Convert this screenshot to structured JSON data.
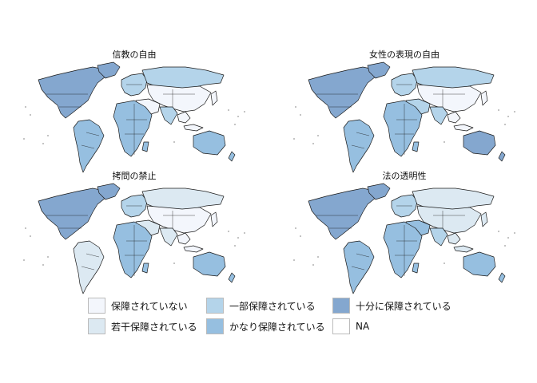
{
  "colors": {
    "none": "#f3f6fc",
    "slight": "#dce9f2",
    "partial": "#b4d4ea",
    "considerable": "#96bfe0",
    "full": "#84a7cf",
    "na": "#ffffff",
    "border": "#1a1a1a"
  },
  "panels": [
    {
      "title": "信教の自由",
      "colors": {
        "NA": "full",
        "SA": "considerable",
        "EU": "partial",
        "RU": "partial",
        "AS": "none",
        "ME": "none",
        "AF": "considerable",
        "IN": "partial",
        "AU": "considerable"
      }
    },
    {
      "title": "女性の表現の自由",
      "colors": {
        "NA": "full",
        "SA": "considerable",
        "EU": "partial",
        "RU": "partial",
        "AS": "none",
        "ME": "partial",
        "AF": "considerable",
        "IN": "partial",
        "AU": "full"
      }
    },
    {
      "title": "拷問の禁止",
      "colors": {
        "NA": "full",
        "SA": "slight",
        "EU": "partial",
        "RU": "slight",
        "AS": "none",
        "ME": "slight",
        "AF": "considerable",
        "IN": "slight",
        "AU": "considerable"
      }
    },
    {
      "title": "法の透明性",
      "colors": {
        "NA": "full",
        "SA": "considerable",
        "EU": "partial",
        "RU": "slight",
        "AS": "slight",
        "ME": "considerable",
        "AF": "considerable",
        "IN": "partial",
        "AU": "considerable"
      }
    }
  ],
  "legend": [
    {
      "label": "保障されていない",
      "level": "none"
    },
    {
      "label": "若干保障されている",
      "level": "slight"
    },
    {
      "label": "一部保障されている",
      "level": "partial"
    },
    {
      "label": "かなり保障されている",
      "level": "considerable"
    },
    {
      "label": "十分に保障されている",
      "level": "full"
    },
    {
      "label": "NA",
      "level": "na"
    }
  ]
}
